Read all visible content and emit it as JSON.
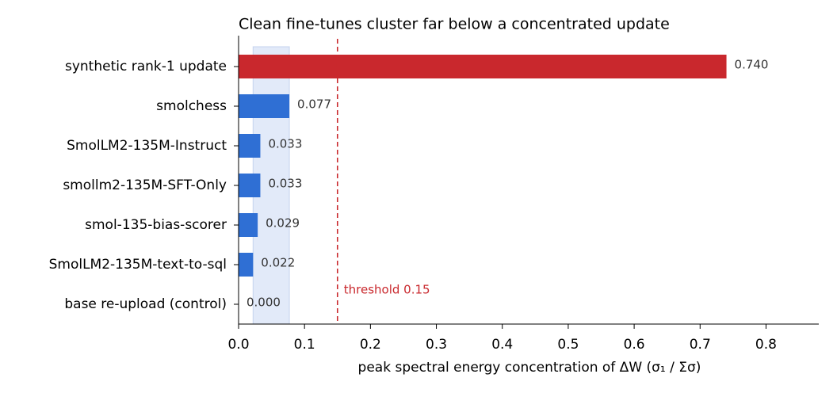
{
  "chart_data": {
    "type": "barh",
    "title": "Clean fine-tunes cluster far below a concentrated update",
    "x_label": "peak spectral energy concentration of ΔW   (σ₁ / Σσ)",
    "categories": [
      "synthetic rank-1 update",
      "smolchess",
      "SmolLM2-135M-Instruct",
      "smollm2-135M-SFT-Only",
      "smol-135-bias-scorer",
      "SmolLM2-135M-text-to-sql",
      "base re-upload (control)"
    ],
    "values": [
      0.74,
      0.077,
      0.033,
      0.033,
      0.029,
      0.022,
      0.0
    ],
    "value_labels": [
      "0.740",
      "0.077",
      "0.033",
      "0.033",
      "0.029",
      "0.022",
      "0.000"
    ],
    "colors": [
      "#c9282d",
      "#2f6fd4",
      "#2f6fd4",
      "#2f6fd4",
      "#2f6fd4",
      "#2f6fd4",
      "#2f6fd4"
    ],
    "xlim": [
      0,
      0.88
    ],
    "xticks": [
      {
        "value": 0,
        "label": "0.0"
      },
      0.1,
      0.2,
      0.3,
      0.4,
      0.5,
      0.6,
      0.7,
      0.8
    ],
    "band": {
      "range": [
        0.022,
        0.077
      ],
      "color": "#dbe5f7"
    },
    "threshold": {
      "value": 0.15,
      "label": "threshold 0.15",
      "color": "#c9282d"
    }
  }
}
